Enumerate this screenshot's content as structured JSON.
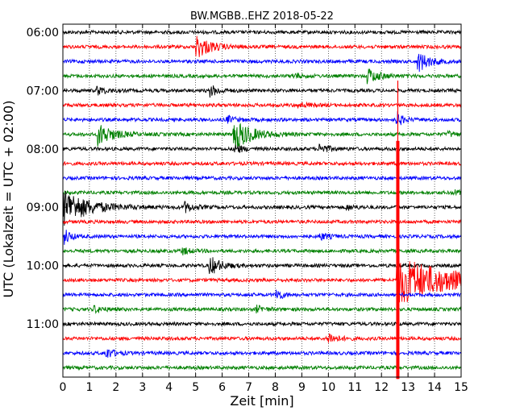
{
  "chart_data": {
    "type": "line",
    "title": "BW.MGBB..EHZ 2018-05-22",
    "xlabel": "Zeit  [min]",
    "ylabel": "UTC (Lokalzeit = UTC + 02:00)",
    "xlim": [
      0,
      15
    ],
    "x_ticks": [
      "0",
      "1",
      "2",
      "3",
      "4",
      "5",
      "6",
      "7",
      "8",
      "9",
      "10",
      "11",
      "12",
      "13",
      "14",
      "15"
    ],
    "y_tick_labels": [
      "06:00",
      "07:00",
      "08:00",
      "09:00",
      "10:00",
      "11:00"
    ],
    "trace_interval_minutes": 15,
    "first_trace": "06:00",
    "trace_colors": [
      "#000000",
      "#ff0000",
      "#0000ff",
      "#008000"
    ],
    "grid": "vertical-dotted",
    "traces": [
      {
        "start": "06:00",
        "color": "#000000",
        "events": []
      },
      {
        "start": "06:15",
        "color": "#ff0000",
        "events": [
          {
            "t": 5.05,
            "amp": 14,
            "decay": 0.5
          }
        ]
      },
      {
        "start": "06:30",
        "color": "#0000ff",
        "events": [
          {
            "t": 13.4,
            "amp": 12,
            "decay": 0.4
          }
        ]
      },
      {
        "start": "06:45",
        "color": "#008000",
        "events": [
          {
            "t": 11.5,
            "amp": 9,
            "decay": 0.4
          },
          {
            "t": 8.7,
            "amp": 3,
            "decay": 0.3
          }
        ]
      },
      {
        "start": "07:00",
        "color": "#000000",
        "events": [
          {
            "t": 1.3,
            "amp": 5,
            "decay": 0.3
          },
          {
            "t": 5.55,
            "amp": 7,
            "decay": 0.3
          }
        ]
      },
      {
        "start": "07:15",
        "color": "#ff0000",
        "events": [
          {
            "t": 8.9,
            "amp": 3,
            "decay": 0.3
          }
        ]
      },
      {
        "start": "07:30",
        "color": "#0000ff",
        "events": [
          {
            "t": 6.2,
            "amp": 4,
            "decay": 0.3
          },
          {
            "t": 12.6,
            "amp": 9,
            "decay": 0.2
          }
        ]
      },
      {
        "start": "07:45",
        "color": "#008000",
        "events": [
          {
            "t": 1.35,
            "amp": 14,
            "decay": 0.5
          },
          {
            "t": 6.45,
            "amp": 20,
            "decay": 0.6
          },
          {
            "t": 14.5,
            "amp": 3,
            "decay": 0.3
          }
        ]
      },
      {
        "start": "08:00",
        "color": "#000000",
        "events": [
          {
            "t": 9.7,
            "amp": 6,
            "decay": 0.3
          },
          {
            "t": 6.5,
            "amp": 5,
            "decay": 0.3
          }
        ]
      },
      {
        "start": "08:15",
        "color": "#ff0000",
        "events": []
      },
      {
        "start": "08:30",
        "color": "#0000ff",
        "events": []
      },
      {
        "start": "08:45",
        "color": "#008000",
        "events": [
          {
            "t": 14.7,
            "amp": 3,
            "decay": 0.3
          }
        ]
      },
      {
        "start": "09:00",
        "color": "#000000",
        "events": [
          {
            "t": 0.05,
            "amp": 22,
            "decay": 0.9
          },
          {
            "t": 4.6,
            "amp": 6,
            "decay": 0.3
          },
          {
            "t": 10.7,
            "amp": 3,
            "decay": 0.3
          }
        ]
      },
      {
        "start": "09:15",
        "color": "#ff0000",
        "events": []
      },
      {
        "start": "09:30",
        "color": "#0000ff",
        "events": [
          {
            "t": 0.1,
            "amp": 9,
            "decay": 0.2
          },
          {
            "t": 9.7,
            "amp": 4,
            "decay": 0.3
          }
        ]
      },
      {
        "start": "09:45",
        "color": "#008000",
        "events": [
          {
            "t": 4.5,
            "amp": 4,
            "decay": 0.3
          }
        ]
      },
      {
        "start": "10:00",
        "color": "#000000",
        "events": [
          {
            "t": 5.55,
            "amp": 11,
            "decay": 0.4
          }
        ]
      },
      {
        "start": "10:15",
        "color": "#ff0000",
        "events": [
          {
            "t": 12.62,
            "amp": 30,
            "decay": 2.0
          }
        ]
      },
      {
        "start": "10:30",
        "color": "#0000ff",
        "events": [
          {
            "t": 8.05,
            "amp": 8,
            "decay": 0.2
          }
        ]
      },
      {
        "start": "10:45",
        "color": "#008000",
        "events": [
          {
            "t": 1.2,
            "amp": 4,
            "decay": 0.3
          },
          {
            "t": 7.3,
            "amp": 4,
            "decay": 0.3
          }
        ]
      },
      {
        "start": "11:00",
        "color": "#000000",
        "events": []
      },
      {
        "start": "11:15",
        "color": "#ff0000",
        "events": [
          {
            "t": 10.0,
            "amp": 7,
            "decay": 0.3
          }
        ]
      },
      {
        "start": "11:30",
        "color": "#0000ff",
        "events": [
          {
            "t": 1.65,
            "amp": 6,
            "decay": 0.3
          }
        ]
      },
      {
        "start": "11:45",
        "color": "#008000",
        "events": []
      }
    ],
    "large_event": {
      "t": 12.6,
      "start_trace": "08:00",
      "end_trace": "11:45",
      "color": "#ff0000"
    }
  }
}
